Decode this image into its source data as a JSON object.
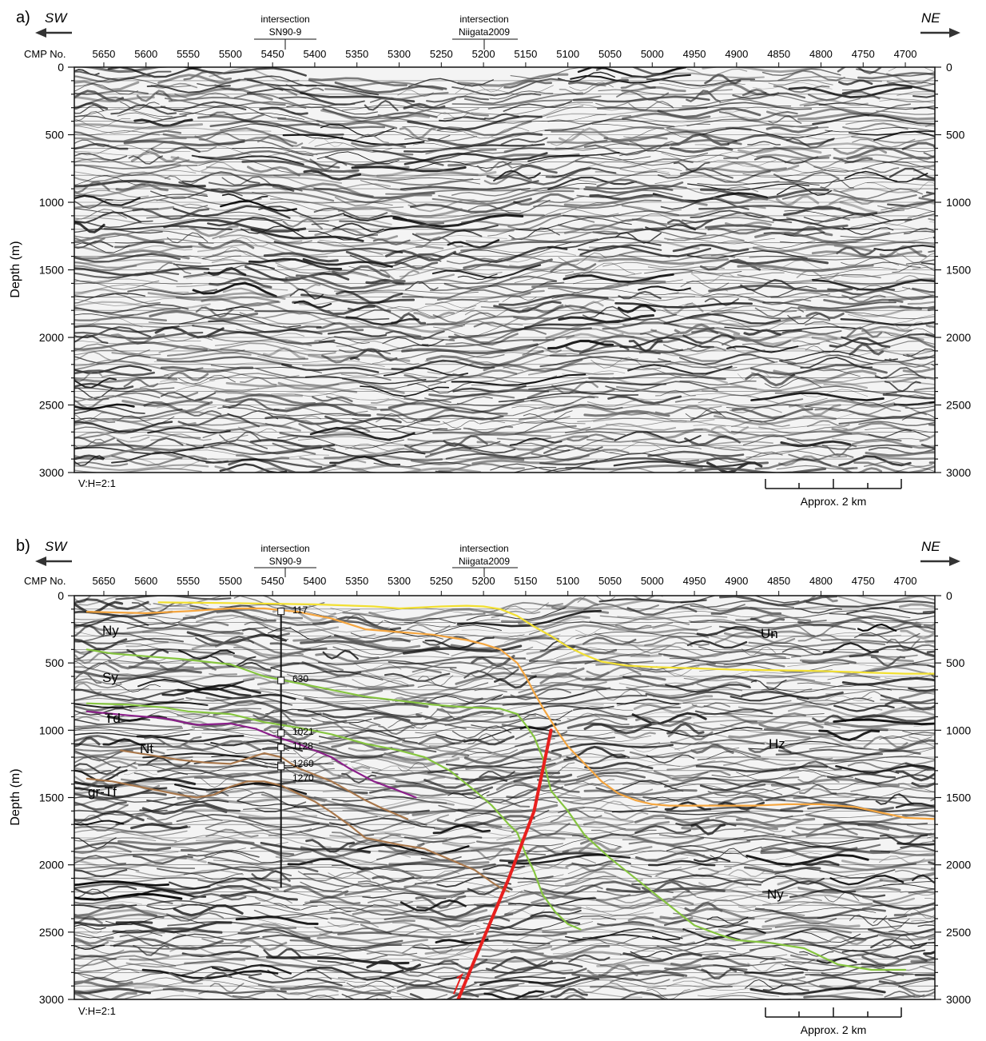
{
  "figure": {
    "panels": [
      {
        "id": "a",
        "panel_label": "a)",
        "dir_left": "SW",
        "dir_right": "NE",
        "cmp_label": "CMP No.",
        "cmp_ticks": [
          "5650",
          "5600",
          "5550",
          "5500",
          "5450",
          "5400",
          "5350",
          "5300",
          "5250",
          "5200",
          "5150",
          "5100",
          "5050",
          "5000",
          "4950",
          "4900",
          "4850",
          "4800",
          "4750",
          "4700"
        ],
        "depth_ticks": [
          "0",
          "500",
          "1000",
          "1500",
          "2000",
          "2500",
          "3000"
        ],
        "ylabel": "Depth (m)",
        "intersections": [
          {
            "line1": "intersection",
            "line2": "SN90-9",
            "cmp": 5440
          },
          {
            "line1": "intersection",
            "line2": "Niigata2009",
            "cmp": 5196
          }
        ],
        "ratio": "V:H=2:1",
        "scale_label": "Approx. 2 km",
        "interpreted": false
      },
      {
        "id": "b",
        "panel_label": "b)",
        "dir_left": "SW",
        "dir_right": "NE",
        "cmp_label": "CMP No.",
        "cmp_ticks": [
          "5650",
          "5600",
          "5550",
          "5500",
          "5450",
          "5400",
          "5350",
          "5300",
          "5250",
          "5200",
          "5150",
          "5100",
          "5050",
          "5000",
          "4950",
          "4900",
          "4850",
          "4800",
          "4750",
          "4700"
        ],
        "depth_ticks": [
          "0",
          "500",
          "1000",
          "1500",
          "2000",
          "2500",
          "3000"
        ],
        "ylabel": "Depth (m)",
        "intersections": [
          {
            "line1": "intersection",
            "line2": "SN90-9",
            "cmp": 5440
          },
          {
            "line1": "intersection",
            "line2": "Niigata2009",
            "cmp": 5196
          }
        ],
        "ratio": "V:H=2:1",
        "scale_label": "Approx. 2 km",
        "interpreted": true,
        "well_markers": [
          "117",
          "630",
          "1021",
          "1128",
          "1260",
          "1270"
        ],
        "formation_labels": [
          "Ny",
          "Sy",
          "Td",
          "Nt",
          "gr-Tf",
          "Un",
          "Hz",
          "Ny"
        ]
      }
    ]
  },
  "chart_data": [
    {
      "type": "seismic-section",
      "panel": "a",
      "xlabel": "CMP No.",
      "ylabel": "Depth (m)",
      "xlim": [
        5685,
        4665
      ],
      "ylim": [
        3000,
        0
      ],
      "xticks": [
        5650,
        5600,
        5550,
        5500,
        5450,
        5400,
        5350,
        5300,
        5250,
        5200,
        5150,
        5100,
        5050,
        5000,
        4950,
        4900,
        4850,
        4800,
        4750,
        4700
      ],
      "yticks": [
        0,
        500,
        1000,
        1500,
        2000,
        2500,
        3000
      ],
      "grid": true
    },
    {
      "type": "seismic-section-interpreted",
      "panel": "b",
      "xlabel": "CMP No.",
      "ylabel": "Depth (m)",
      "xlim": [
        5685,
        4665
      ],
      "ylim": [
        3000,
        0
      ],
      "grid": true,
      "horizons": [
        {
          "color": "#f2e032",
          "x": [
            5585,
            5500,
            5450,
            5400,
            5330,
            5300,
            5250,
            5220,
            5200,
            5180,
            5160,
            5140,
            5120,
            5100,
            5080,
            5060,
            5030,
            5000,
            4950,
            4900,
            4850,
            4800,
            4750,
            4700,
            4665
          ],
          "y": [
            50,
            55,
            60,
            65,
            80,
            95,
            80,
            75,
            80,
            100,
            150,
            230,
            300,
            380,
            440,
            490,
            520,
            530,
            540,
            550,
            555,
            560,
            570,
            580,
            580
          ]
        },
        {
          "color": "#f5a640",
          "x": [
            5670,
            5600,
            5550,
            5500,
            5460,
            5420,
            5380,
            5340,
            5300,
            5260,
            5240,
            5220,
            5200,
            5180,
            5160,
            5150,
            5140,
            5130,
            5120,
            5110,
            5100,
            5080,
            5060,
            5040,
            5020,
            5000,
            4980,
            4950,
            4940,
            4920,
            4900,
            4880,
            4860,
            4840,
            4820,
            4800,
            4760,
            4730,
            4700,
            4665
          ],
          "y": [
            120,
            130,
            115,
            95,
            95,
            120,
            170,
            250,
            270,
            290,
            310,
            330,
            360,
            400,
            500,
            600,
            720,
            830,
            930,
            1030,
            1120,
            1250,
            1380,
            1470,
            1520,
            1550,
            1560,
            1560,
            1560,
            1560,
            1560,
            1560,
            1555,
            1550,
            1550,
            1550,
            1570,
            1610,
            1650,
            1660
          ]
        },
        {
          "color": "#86c540",
          "x": [
            5670,
            5640,
            5600,
            5560,
            5500,
            5460,
            5420,
            5380,
            5340,
            5300,
            5260,
            5220,
            5180,
            5160,
            5150,
            5140,
            5130,
            5120,
            5100,
            5080,
            5050,
            5000,
            4950,
            4920,
            4900,
            4860,
            4820,
            4800,
            4780,
            4740,
            4700
          ],
          "y": [
            400,
            430,
            450,
            470,
            510,
            600,
            650,
            700,
            750,
            780,
            810,
            830,
            840,
            880,
            960,
            1050,
            1200,
            1450,
            1600,
            1780,
            1950,
            2200,
            2450,
            2520,
            2560,
            2580,
            2620,
            2680,
            2740,
            2780,
            2780
          ]
        },
        {
          "color": "#86c540",
          "x": [
            5670,
            5620,
            5580,
            5550,
            5500,
            5460,
            5420,
            5380,
            5340,
            5300,
            5270,
            5240,
            5210,
            5190,
            5170,
            5160,
            5150,
            5140,
            5130,
            5115,
            5100,
            5085
          ],
          "y": [
            800,
            810,
            830,
            860,
            880,
            940,
            980,
            1030,
            1100,
            1150,
            1200,
            1300,
            1450,
            1560,
            1700,
            1760,
            1920,
            2050,
            2220,
            2350,
            2440,
            2480
          ]
        },
        {
          "color": "#8b1f8a",
          "x": [
            5670,
            5620,
            5580,
            5540,
            5500,
            5470,
            5450,
            5420,
            5400,
            5380,
            5360,
            5330,
            5300,
            5280
          ],
          "y": [
            860,
            890,
            910,
            960,
            950,
            990,
            1040,
            1100,
            1150,
            1200,
            1280,
            1380,
            1450,
            1500
          ]
        },
        {
          "color": "#a8774b",
          "x": [
            5630,
            5600,
            5560,
            5530,
            5500,
            5480,
            5460,
            5440,
            5420,
            5400,
            5380,
            5360,
            5340,
            5320,
            5290
          ],
          "y": [
            1150,
            1180,
            1220,
            1240,
            1250,
            1210,
            1170,
            1200,
            1280,
            1330,
            1380,
            1450,
            1520,
            1580,
            1660
          ]
        },
        {
          "color": "#a8774b",
          "x": [
            5670,
            5640,
            5600,
            5560,
            5540,
            5520,
            5500,
            5480,
            5460,
            5440,
            5420,
            5400,
            5380,
            5360,
            5340,
            5300,
            5270,
            5240,
            5210,
            5190,
            5180,
            5170
          ],
          "y": [
            1360,
            1380,
            1430,
            1480,
            1500,
            1480,
            1420,
            1380,
            1380,
            1410,
            1470,
            1530,
            1610,
            1700,
            1800,
            1850,
            1880,
            1960,
            2040,
            2130,
            2170,
            2200
          ]
        }
      ],
      "fault": {
        "color": "#e8201e",
        "x": [
          5120,
          5140,
          5170,
          5210,
          5230
        ],
        "y": [
          1000,
          1600,
          2100,
          2700,
          3000
        ]
      },
      "well": {
        "cmp": 5440,
        "top": 100,
        "bottom": 2170
      }
    }
  ]
}
